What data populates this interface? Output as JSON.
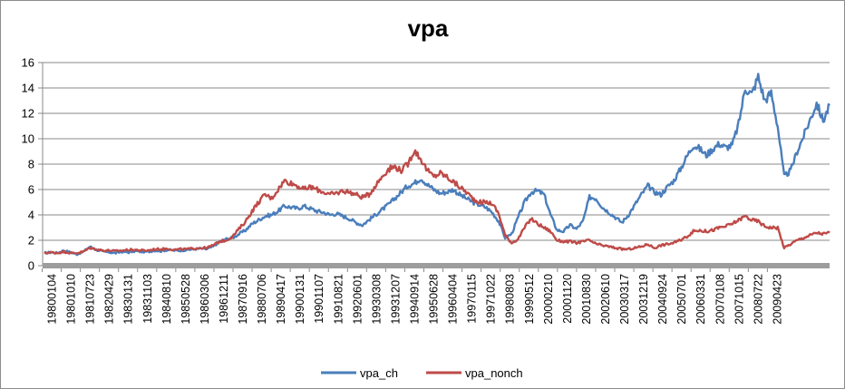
{
  "chart_data": {
    "type": "line",
    "title": "vpa",
    "xlabel": "",
    "ylabel": "",
    "ylim": [
      0,
      16
    ],
    "yticks": [
      0,
      2,
      4,
      6,
      8,
      10,
      12,
      14,
      16
    ],
    "x_ticks": [
      "19800104",
      "19801010",
      "19810723",
      "19820429",
      "19830131",
      "19831103",
      "19840810",
      "19850528",
      "19860306",
      "19861211",
      "19870916",
      "19880706",
      "19890417",
      "19900131",
      "19901107",
      "19910821",
      "19920601",
      "19930308",
      "19931207",
      "19940914",
      "19950628",
      "19960404",
      "19970115",
      "19971022",
      "19980803",
      "19990512",
      "20000210",
      "20001120",
      "20010830",
      "20020610",
      "20030317",
      "20031219",
      "20040924",
      "20050701",
      "20060331",
      "20070108",
      "20071015",
      "20080722",
      "20090423"
    ],
    "legend_position": "bottom",
    "grid": true,
    "series": [
      {
        "name": "vpa_ch",
        "color": "#4a7ebb",
        "values": [
          1.0,
          1.05,
          1.0,
          1.2,
          1.05,
          0.9,
          1.1,
          1.5,
          1.25,
          1.1,
          1.05,
          1.0,
          1.1,
          1.05,
          1.15,
          1.1,
          1.1,
          1.2,
          1.15,
          1.25,
          1.2,
          1.2,
          1.25,
          1.3,
          1.35,
          1.3,
          1.5,
          1.9,
          2.1,
          2.2,
          2.5,
          2.8,
          3.3,
          3.6,
          3.9,
          4.0,
          4.3,
          4.7,
          4.6,
          4.5,
          4.7,
          4.5,
          4.3,
          4.2,
          4.0,
          4.1,
          3.9,
          3.7,
          3.4,
          3.2,
          3.6,
          4.0,
          4.4,
          4.8,
          5.3,
          5.8,
          6.3,
          6.5,
          6.9,
          6.4,
          6.0,
          5.7,
          5.8,
          6.0,
          5.6,
          5.3,
          5.0,
          4.8,
          4.6,
          4.2,
          3.5,
          2.2,
          2.5,
          3.8,
          5.0,
          5.8,
          5.9,
          5.6,
          4.0,
          2.8,
          2.7,
          3.2,
          2.9,
          3.5,
          5.4,
          5.3,
          4.6,
          4.2,
          3.8,
          3.4,
          4.0,
          4.8,
          5.6,
          6.3,
          5.8,
          5.6,
          6.2,
          6.7,
          7.6,
          8.6,
          9.5,
          9.2,
          8.7,
          9.2,
          9.6,
          9.3,
          9.5,
          11.2,
          14.0,
          13.5,
          14.9,
          13.0,
          13.6,
          11.0,
          7.0,
          7.5,
          9.0,
          10.2,
          11.5,
          12.8,
          11.4,
          12.6
        ]
      },
      {
        "name": "vpa_nonch",
        "color": "#be4b48",
        "values": [
          1.0,
          1.05,
          1.0,
          1.1,
          1.0,
          1.0,
          1.1,
          1.4,
          1.3,
          1.2,
          1.2,
          1.15,
          1.2,
          1.25,
          1.25,
          1.2,
          1.2,
          1.3,
          1.3,
          1.35,
          1.25,
          1.3,
          1.3,
          1.35,
          1.4,
          1.4,
          1.6,
          1.9,
          2.0,
          2.3,
          2.9,
          3.5,
          4.3,
          5.0,
          5.6,
          5.3,
          6.0,
          6.7,
          6.5,
          6.3,
          6.0,
          6.2,
          6.0,
          5.8,
          5.6,
          5.7,
          5.9,
          5.8,
          5.6,
          5.4,
          5.6,
          6.3,
          7.0,
          7.6,
          7.8,
          7.5,
          8.0,
          9.1,
          8.4,
          7.5,
          7.0,
          7.3,
          7.0,
          6.6,
          6.2,
          5.8,
          5.3,
          5.0,
          5.0,
          4.9,
          4.1,
          2.4,
          1.8,
          2.1,
          3.0,
          3.7,
          3.3,
          3.0,
          2.7,
          2.0,
          1.9,
          1.9,
          1.8,
          1.9,
          2.0,
          1.7,
          1.6,
          1.5,
          1.4,
          1.3,
          1.3,
          1.4,
          1.5,
          1.7,
          1.4,
          1.6,
          1.7,
          1.8,
          2.0,
          2.3,
          2.7,
          2.8,
          2.7,
          2.8,
          3.0,
          3.1,
          3.3,
          3.6,
          3.9,
          3.6,
          3.5,
          3.1,
          3.0,
          3.0,
          1.4,
          1.7,
          2.0,
          2.2,
          2.4,
          2.6,
          2.5,
          2.6
        ]
      }
    ]
  }
}
